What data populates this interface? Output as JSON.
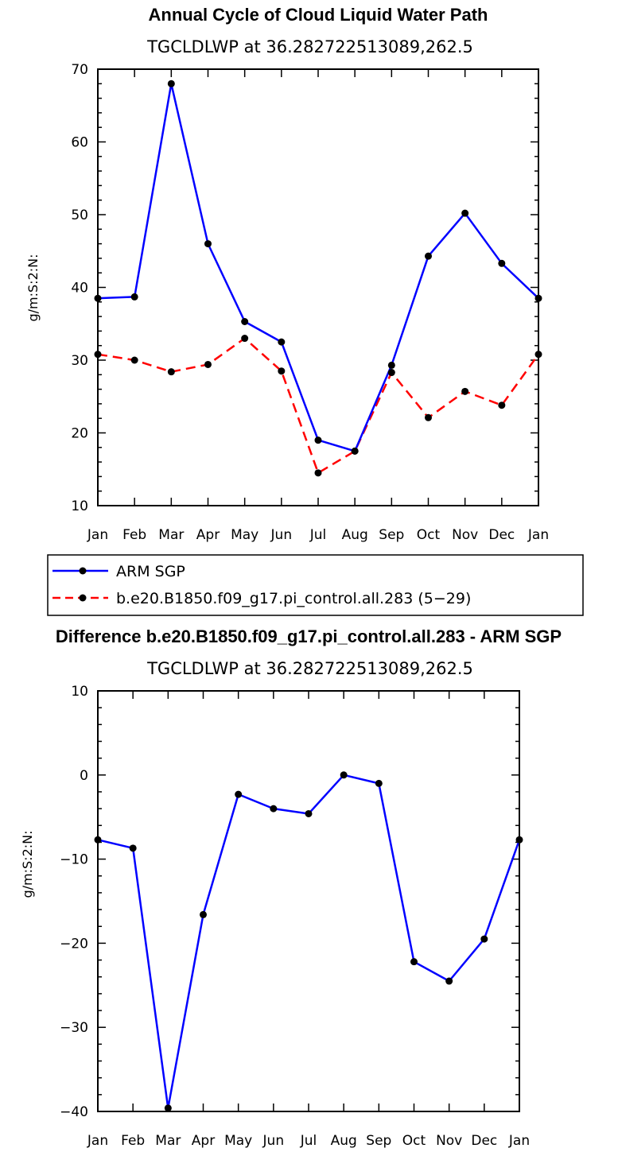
{
  "chart_data": [
    {
      "type": "line",
      "title": "Annual Cycle of Cloud Liquid Water Path",
      "subtitle": "TGCLDLWP at 36.282722513089,262.5",
      "ylabel": "g/m:S:2:N:",
      "xlabel": "",
      "categories": [
        "Jan",
        "Feb",
        "Mar",
        "Apr",
        "May",
        "Jun",
        "Jul",
        "Aug",
        "Sep",
        "Oct",
        "Nov",
        "Dec",
        "Jan"
      ],
      "ylim": [
        10,
        70
      ],
      "yticks": [
        10,
        20,
        30,
        40,
        50,
        60,
        70
      ],
      "ytick_labels": [
        "10",
        "20",
        "30",
        "40",
        "50",
        "60",
        "70"
      ],
      "series": [
        {
          "name": "ARM SGP",
          "color": "#0000ff",
          "dash": "solid",
          "values": [
            38.5,
            38.7,
            68.0,
            46.0,
            35.3,
            32.5,
            19.0,
            17.5,
            29.3,
            44.3,
            50.2,
            43.3,
            38.5
          ]
        },
        {
          "name": "b.e20.B1850.f09_g17.pi_control.all.283 (5−29)",
          "color": "#ff0000",
          "dash": "dashed",
          "values": [
            30.8,
            30.0,
            28.4,
            29.4,
            33.0,
            28.5,
            14.5,
            17.5,
            28.3,
            22.1,
            25.7,
            23.8,
            30.8
          ]
        }
      ]
    },
    {
      "type": "line",
      "title": "Difference b.e20.B1850.f09_g17.pi_control.all.283 - ARM SGP",
      "subtitle": "TGCLDLWP at 36.282722513089,262.5",
      "ylabel": "g/m:S:2:N:",
      "xlabel": "",
      "categories": [
        "Jan",
        "Feb",
        "Mar",
        "Apr",
        "May",
        "Jun",
        "Jul",
        "Aug",
        "Sep",
        "Oct",
        "Nov",
        "Dec",
        "Jan"
      ],
      "ylim": [
        -40,
        10
      ],
      "yticks": [
        -40,
        -30,
        -20,
        -10,
        0,
        10
      ],
      "ytick_labels": [
        "−40",
        "−30",
        "−20",
        "−10",
        "0",
        "10"
      ],
      "series": [
        {
          "name": "Difference",
          "color": "#0000ff",
          "dash": "solid",
          "values": [
            -7.7,
            -8.7,
            -39.6,
            -16.6,
            -2.3,
            -4.0,
            -4.6,
            0.0,
            -1.0,
            -22.2,
            -24.5,
            -19.5,
            -7.7
          ]
        }
      ]
    }
  ]
}
